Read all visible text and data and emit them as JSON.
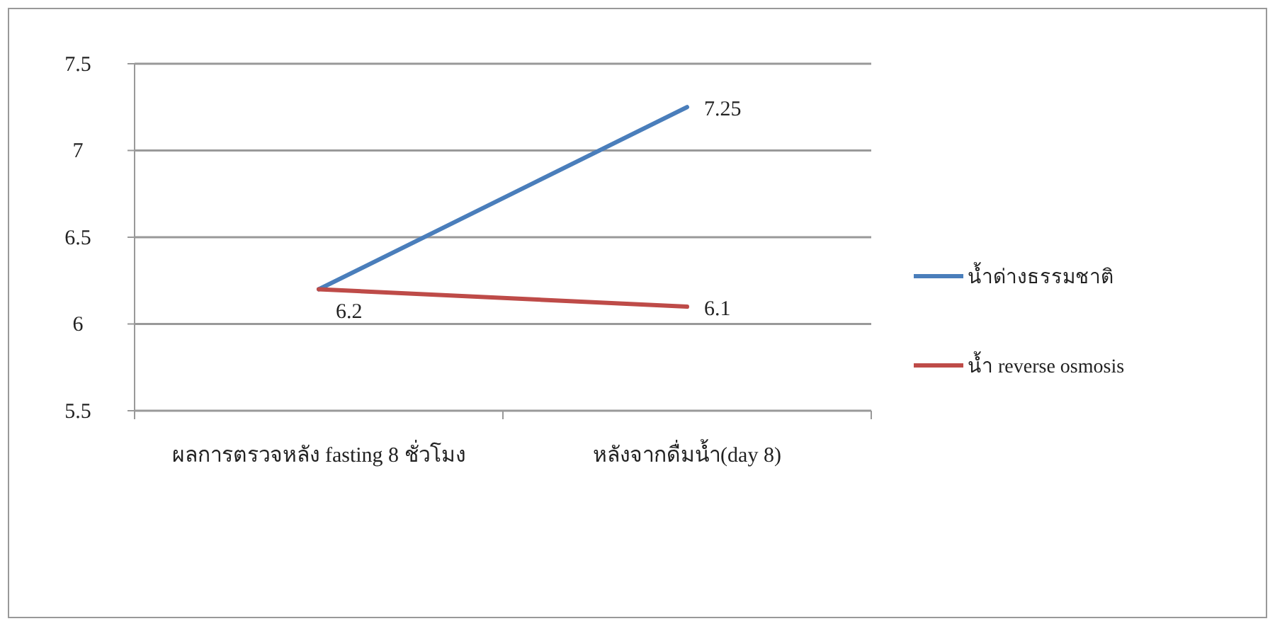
{
  "chart_data": {
    "type": "line",
    "categories": [
      "ผลการตรวจหลัง fasting 8 ชั่วโมง",
      "หลังจากดื่มน้ำ(day 8)"
    ],
    "series": [
      {
        "name": "น้ำด่างธรรมชาติ",
        "color": "#4a7ebb",
        "values": [
          6.2,
          7.25
        ],
        "value_labels": [
          null,
          "7.25"
        ]
      },
      {
        "name": "น้ำ reverse osmosis",
        "color": "#be4b48",
        "values": [
          6.2,
          6.1
        ],
        "value_labels": [
          "6.2",
          "6.1"
        ]
      }
    ],
    "ylim": [
      5.5,
      7.5
    ],
    "yticks": [
      5.5,
      6,
      6.5,
      7,
      7.5
    ],
    "grid": "y",
    "legend": "right",
    "marker": "none",
    "line_style": "solid"
  }
}
